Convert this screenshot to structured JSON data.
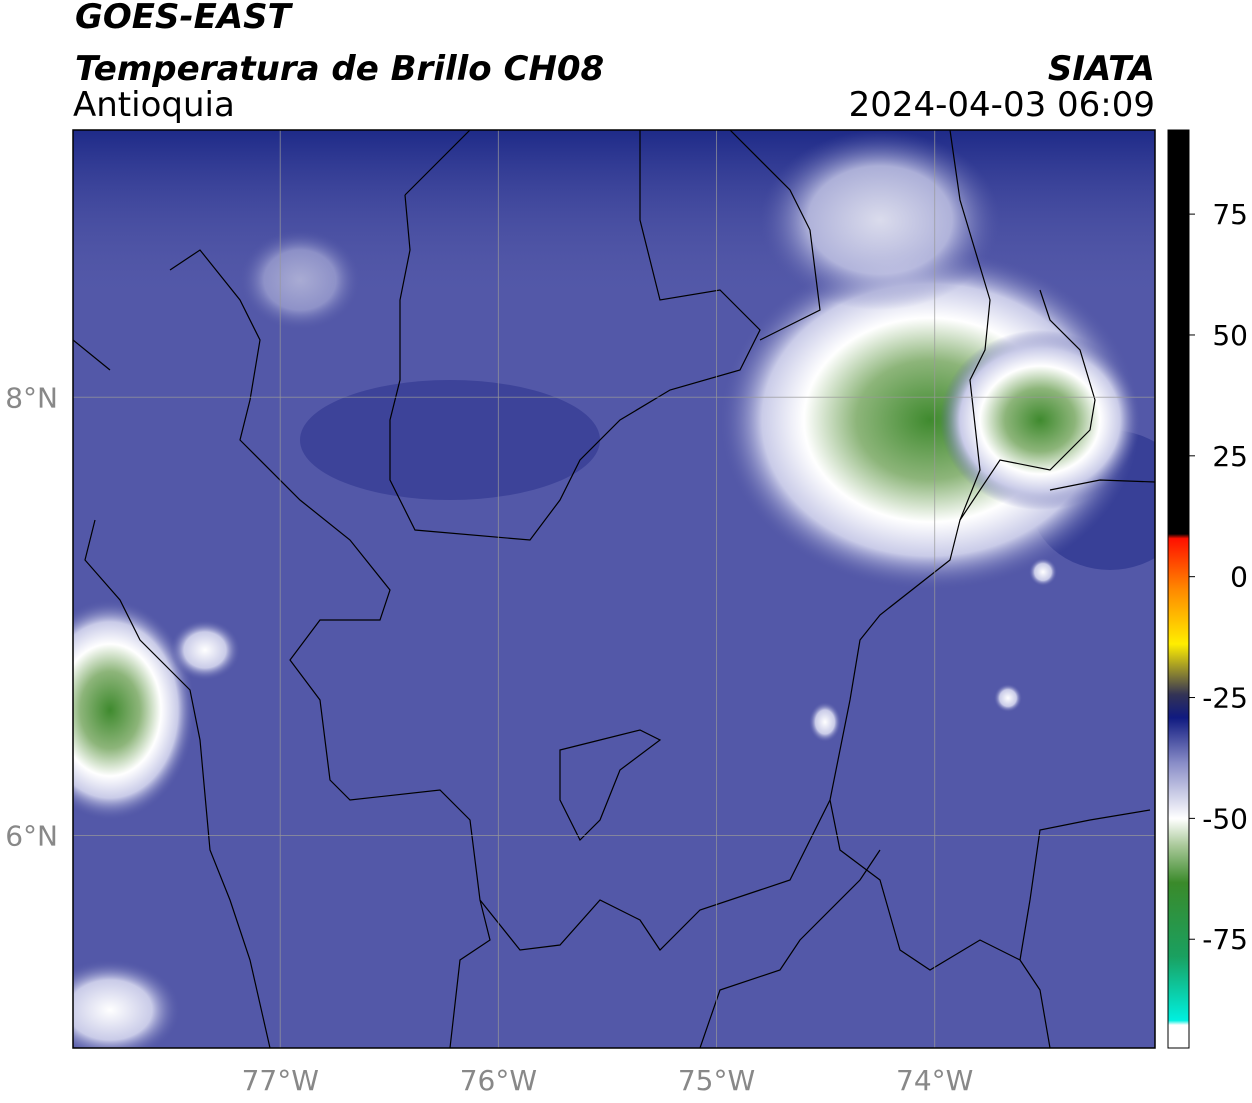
{
  "header": {
    "title": "GOES-EAST",
    "subtitle": "Temperatura de Brillo CH08",
    "region": "Antioquia",
    "source": "SIATA",
    "datetime": "2024-04-03 06:09"
  },
  "map": {
    "lonlim": [
      -77.95,
      -72.99
    ],
    "latlim": [
      5.03,
      9.22
    ],
    "lon_ticks": [
      {
        "value": -77,
        "label": "77°W"
      },
      {
        "value": -76,
        "label": "76°W"
      },
      {
        "value": -75,
        "label": "75°W"
      },
      {
        "value": -74,
        "label": "74°W"
      }
    ],
    "lat_ticks": [
      {
        "value": 8,
        "label": "8°N"
      },
      {
        "value": 6,
        "label": "6°N"
      }
    ]
  },
  "colorbar": {
    "lim": [
      -97.5,
      92.4
    ],
    "ticks": [
      75,
      50,
      25,
      0,
      -25,
      -50,
      -75
    ]
  }
}
